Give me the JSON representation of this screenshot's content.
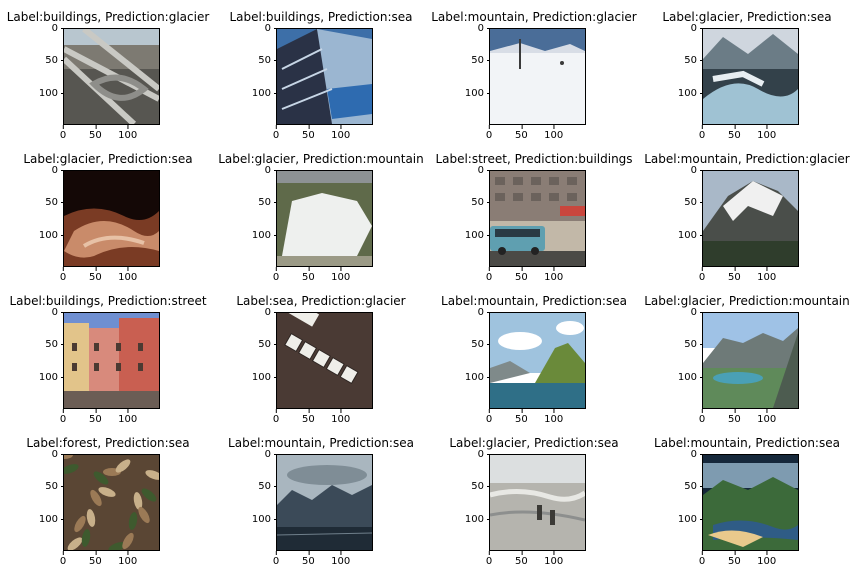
{
  "axis": {
    "yticks": [
      "0",
      "50",
      "100"
    ],
    "xticks": [
      "0",
      "50",
      "100"
    ]
  },
  "panels": [
    {
      "title": "Label:buildings, Prediction:glacier",
      "scene": "city-rope",
      "colors": [
        "#b8c6cf",
        "#7d7a72",
        "#4e4d48",
        "#c9c9c4"
      ]
    },
    {
      "title": "Label:buildings, Prediction:sea",
      "scene": "skyscrapers",
      "colors": [
        "#3d6fa8",
        "#9bb6d1",
        "#2a3246",
        "#c7d6e6"
      ]
    },
    {
      "title": "Label:mountain, Prediction:glacier",
      "scene": "snowfield",
      "colors": [
        "#4a6d98",
        "#f2f4f7",
        "#d8dde6",
        "#3a3a3a"
      ]
    },
    {
      "title": "Label:glacier, Prediction:sea",
      "scene": "glacier-river",
      "colors": [
        "#cfd6de",
        "#6b7c86",
        "#9fc2d3",
        "#33414a"
      ]
    },
    {
      "title": "Label:glacier, Prediction:sea",
      "scene": "cave",
      "colors": [
        "#140806",
        "#7a3b24",
        "#c98b6a",
        "#e7c1a6"
      ]
    },
    {
      "title": "Label:glacier, Prediction:mountain",
      "scene": "snowpatch",
      "colors": [
        "#8d9294",
        "#5f6a4a",
        "#eef0ee",
        "#9b9a86"
      ]
    },
    {
      "title": "Label:street, Prediction:buildings",
      "scene": "street-van",
      "colors": [
        "#8a7d75",
        "#5f9fb0",
        "#4b4a46",
        "#c2b8a8"
      ]
    },
    {
      "title": "Label:mountain, Prediction:glacier",
      "scene": "alps",
      "colors": [
        "#a9b8c8",
        "#f0f0f0",
        "#4a4e4a",
        "#2f3d2c"
      ]
    },
    {
      "title": "Label:buildings, Prediction:street",
      "scene": "colorful-houses",
      "colors": [
        "#6f8fd1",
        "#d88a7c",
        "#e2c48a",
        "#6b5d55"
      ]
    },
    {
      "title": "Label:sea, Prediction:glacier",
      "scene": "tiles",
      "colors": [
        "#4a3a34",
        "#efeee9",
        "#2d2522",
        "#7b6b62"
      ]
    },
    {
      "title": "Label:mountain, Prediction:sea",
      "scene": "lake-peak",
      "colors": [
        "#9fc3de",
        "#ffffff",
        "#6a8a3a",
        "#2f6f87"
      ]
    },
    {
      "title": "Label:glacier, Prediction:mountain",
      "scene": "valley-lake",
      "colors": [
        "#9fc2e6",
        "#6e7a78",
        "#5f8a5a",
        "#4aa0b6"
      ]
    },
    {
      "title": "Label:forest, Prediction:sea",
      "scene": "leaves",
      "colors": [
        "#5a4634",
        "#9b7a56",
        "#3e5a2e",
        "#c8b08a"
      ]
    },
    {
      "title": "Label:mountain, Prediction:sea",
      "scene": "dark-mountain",
      "colors": [
        "#a9b6bf",
        "#3b4a58",
        "#1f2b36",
        "#6f7f8b"
      ]
    },
    {
      "title": "Label:glacier, Prediction:sea",
      "scene": "hikers",
      "colors": [
        "#dcdfe0",
        "#8d8f8e",
        "#b5b4ae",
        "#3b3a36"
      ]
    },
    {
      "title": "Label:mountain, Prediction:sea",
      "scene": "fjord",
      "colors": [
        "#16283b",
        "#3c6a3a",
        "#2f5c86",
        "#e9c98c"
      ]
    }
  ]
}
